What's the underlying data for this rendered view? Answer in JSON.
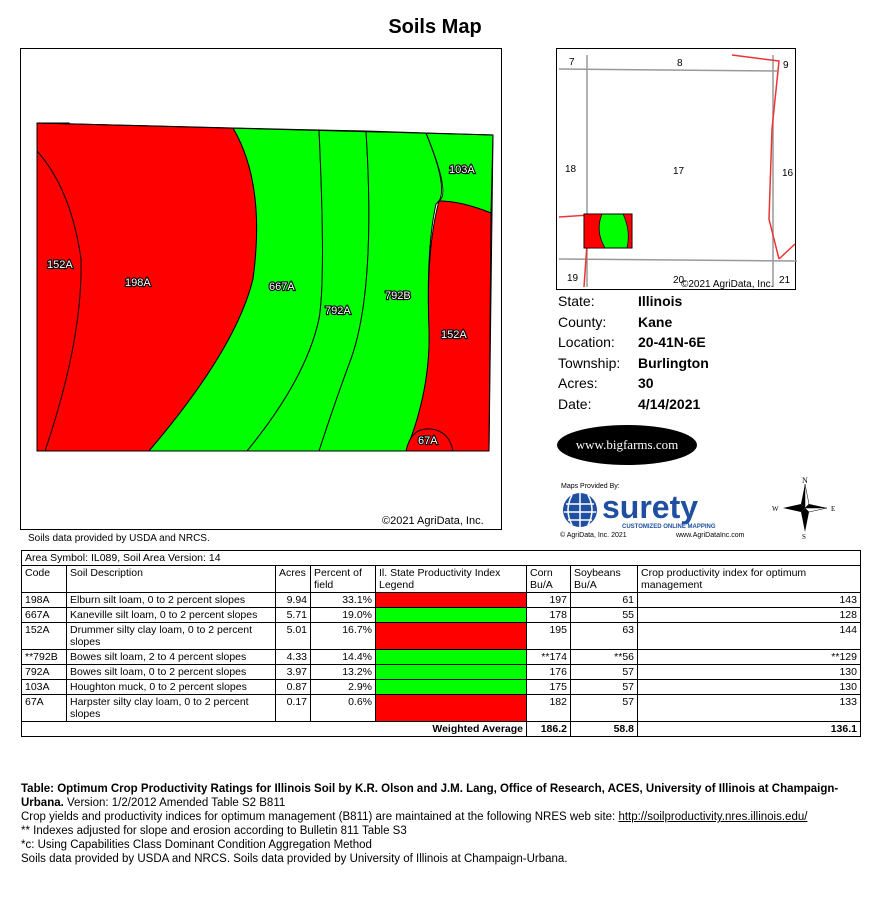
{
  "title": "Soils Map",
  "map": {
    "copyright": "©2021 AgriData, Inc.",
    "source_note": "Soils data provided by USDA and NRCS.",
    "colors": {
      "red": "#ff0000",
      "green": "#00ff00"
    },
    "labels": [
      "152A",
      "198A",
      "667A",
      "792A",
      "792B",
      "103A",
      "152A",
      "67A"
    ]
  },
  "locator": {
    "sections": [
      "7",
      "8",
      "9",
      "18",
      "17",
      "16",
      "19",
      "20",
      "21"
    ],
    "copyright": "©2021 AgriData, Inc."
  },
  "info": {
    "state_label": "State:",
    "state": "Illinois",
    "county_label": "County:",
    "county": "Kane",
    "location_label": "Location:",
    "location": "20-41N-6E",
    "township_label": "Township:",
    "township": "Burlington",
    "acres_label": "Acres:",
    "acres": "30",
    "date_label": "Date:",
    "date": "4/14/2021"
  },
  "logos": {
    "bigfarms": "www.bigfarms.com",
    "maps_provided_by": "Maps Provided By:",
    "surety": "surety",
    "surety_tag": "CUSTOMIZED ONLINE MAPPING",
    "surety_copy": "© AgriData, Inc. 2021",
    "surety_web": "www.AgriDataInc.com"
  },
  "compass": {
    "n": "N",
    "s": "S",
    "e": "E",
    "w": "W"
  },
  "table": {
    "area_symbol": "Area Symbol: IL089, Soil Area Version: 14",
    "headers": {
      "code": "Code",
      "desc": "Soil Description",
      "acres": "Acres",
      "pct": "Percent of field",
      "legend": "Il. State Productivity Index Legend",
      "corn": "Corn Bu/A",
      "soy": "Soybeans Bu/A",
      "index": "Crop productivity index for optimum management"
    },
    "rows": [
      {
        "code": "198A",
        "desc": "Elburn silt loam, 0 to 2 percent slopes",
        "acres": "9.94",
        "pct": "33.1%",
        "color": "#ff0000",
        "corn": "197",
        "soy": "61",
        "index": "143"
      },
      {
        "code": "667A",
        "desc": "Kaneville silt loam, 0 to 2 percent slopes",
        "acres": "5.71",
        "pct": "19.0%",
        "color": "#00ff00",
        "corn": "178",
        "soy": "55",
        "index": "128"
      },
      {
        "code": "152A",
        "desc": "Drummer silty clay loam, 0 to 2 percent slopes",
        "acres": "5.01",
        "pct": "16.7%",
        "color": "#ff0000",
        "corn": "195",
        "soy": "63",
        "index": "144"
      },
      {
        "code": "**792B",
        "desc": "Bowes silt loam, 2 to 4 percent slopes",
        "acres": "4.33",
        "pct": "14.4%",
        "color": "#00ff00",
        "corn": "**174",
        "soy": "**56",
        "index": "**129"
      },
      {
        "code": "792A",
        "desc": "Bowes silt loam, 0 to 2 percent slopes",
        "acres": "3.97",
        "pct": "13.2%",
        "color": "#00ff00",
        "corn": "176",
        "soy": "57",
        "index": "130"
      },
      {
        "code": "103A",
        "desc": "Houghton muck, 0 to 2 percent slopes",
        "acres": "0.87",
        "pct": "2.9%",
        "color": "#00ff00",
        "corn": "175",
        "soy": "57",
        "index": "130"
      },
      {
        "code": "67A",
        "desc": "Harpster silty clay loam, 0 to 2 percent slopes",
        "acres": "0.17",
        "pct": "0.6%",
        "color": "#ff0000",
        "corn": "182",
        "soy": "57",
        "index": "133"
      }
    ],
    "weighted": {
      "label": "Weighted Average",
      "corn": "186.2",
      "soy": "58.8",
      "index": "136.1"
    }
  },
  "notes": {
    "table_bold": "Table: Optimum Crop Productivity Ratings for Illinois Soil by K.R. Olson and J.M. Lang, Office of Research, ACES, University of Illinois at Champaign-Urbana.",
    "version": " Version: 1/2/2012 Amended Table S2 B811",
    "line2": "Crop yields and productivity indices for optimum management (B811) are maintained at the following NRES web site: ",
    "link": "http://soilproductivity.nres.illinois.edu/",
    "line3": "** Indexes adjusted for slope and erosion according to Bulletin 811 Table S3",
    "line4": "*c: Using Capabilities Class Dominant Condition Aggregation Method",
    "line5": "Soils data provided by USDA and NRCS. Soils data provided by University of Illinois at Champaign-Urbana."
  }
}
